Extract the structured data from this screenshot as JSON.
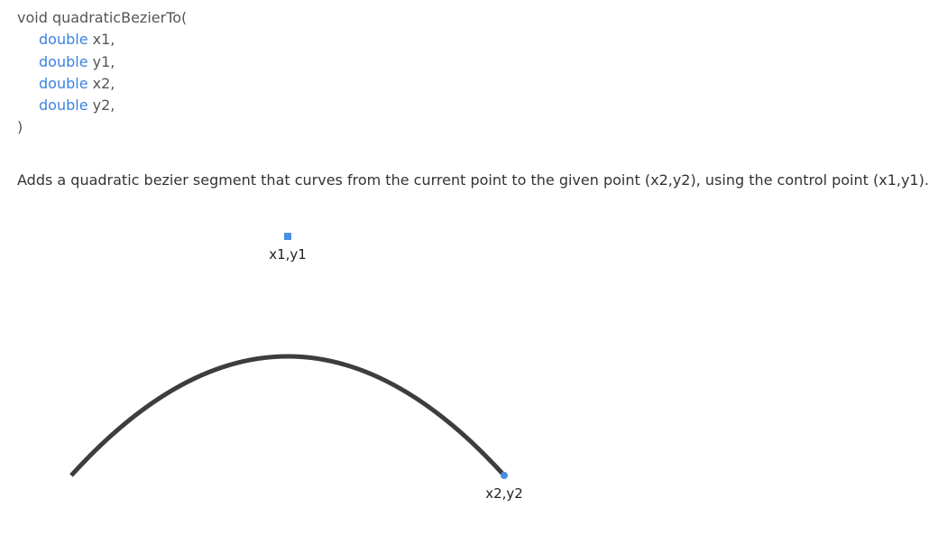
{
  "signature": {
    "open": "void quadraticBezierTo(",
    "params": [
      {
        "type": "double",
        "name": " x1,"
      },
      {
        "type": "double",
        "name": " y1,"
      },
      {
        "type": "double",
        "name": " x2,"
      },
      {
        "type": "double",
        "name": " y2,"
      }
    ],
    "close": ")"
  },
  "description": "Adds a quadratic bezier segment that curves from the current point to the given point (x2,y2), using the control point (x1,y1).",
  "diagram": {
    "control_point_label": "x1,y1",
    "end_point_label": "x2,y2",
    "colors": {
      "curve": "#3d3d3d",
      "point_marker": "#4a90e2"
    }
  }
}
